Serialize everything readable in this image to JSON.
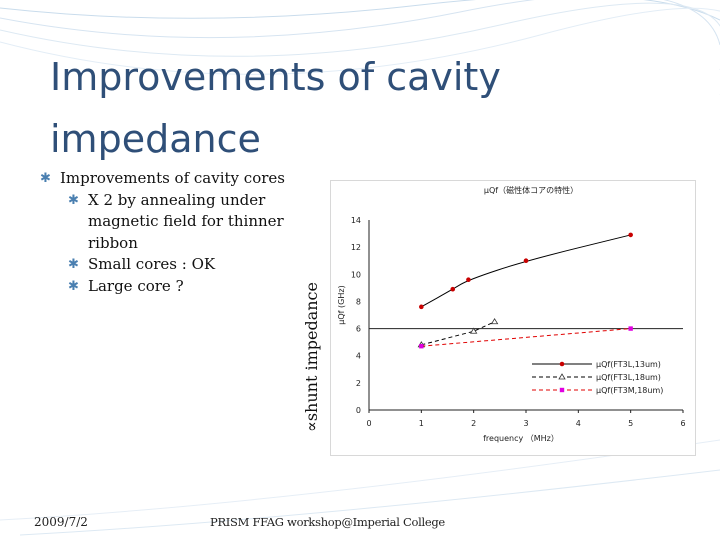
{
  "slide": {
    "title": "Improvements of cavity impedance",
    "bullets": [
      {
        "level": 1,
        "text": "Improvements of cavity cores"
      },
      {
        "level": 2,
        "text": "X 2 by annealing under magnetic field for thinner ribbon"
      },
      {
        "level": 2,
        "text": "Small cores : OK"
      },
      {
        "level": 2,
        "text": "Large core ?"
      }
    ],
    "side_label": "∝shunt impedance",
    "footer": {
      "date": "2009/7/2",
      "event": "PRISM FFAG workshop@Imperial College"
    }
  },
  "chart_data": {
    "type": "line",
    "title": "μQf（磁性体コアの特性）",
    "xlabel": "frequency （MHz）",
    "ylabel": "μQf (GHz)",
    "xlim": [
      0,
      6
    ],
    "ylim": [
      0,
      14
    ],
    "xticks": [
      0,
      1,
      2,
      3,
      4,
      5,
      6
    ],
    "yticks": [
      0,
      2,
      4,
      6,
      8,
      10,
      12,
      14
    ],
    "hlines": [
      6
    ],
    "legend_position": "bottom-right",
    "series": [
      {
        "name": "μQf(FT3L,13um)",
        "color": "#c80000",
        "marker": "circle",
        "line": "solid",
        "line_color": "#000000",
        "x": [
          1,
          1.6,
          1.9,
          3,
          5
        ],
        "y": [
          7.6,
          8.9,
          9.6,
          11.0,
          12.9
        ]
      },
      {
        "name": "μQf(FT3L,18um)",
        "color": "#333333",
        "marker": "triangle",
        "line": "dashed",
        "line_color": "#000000",
        "x": [
          1,
          2,
          2.4
        ],
        "y": [
          4.8,
          5.8,
          6.5
        ]
      },
      {
        "name": "μQf(FT3M,18um)",
        "color": "#e000e0",
        "marker": "square",
        "line": "dashed",
        "line_color": "#e00000",
        "x": [
          1,
          5
        ],
        "y": [
          4.7,
          6.0
        ]
      }
    ]
  }
}
